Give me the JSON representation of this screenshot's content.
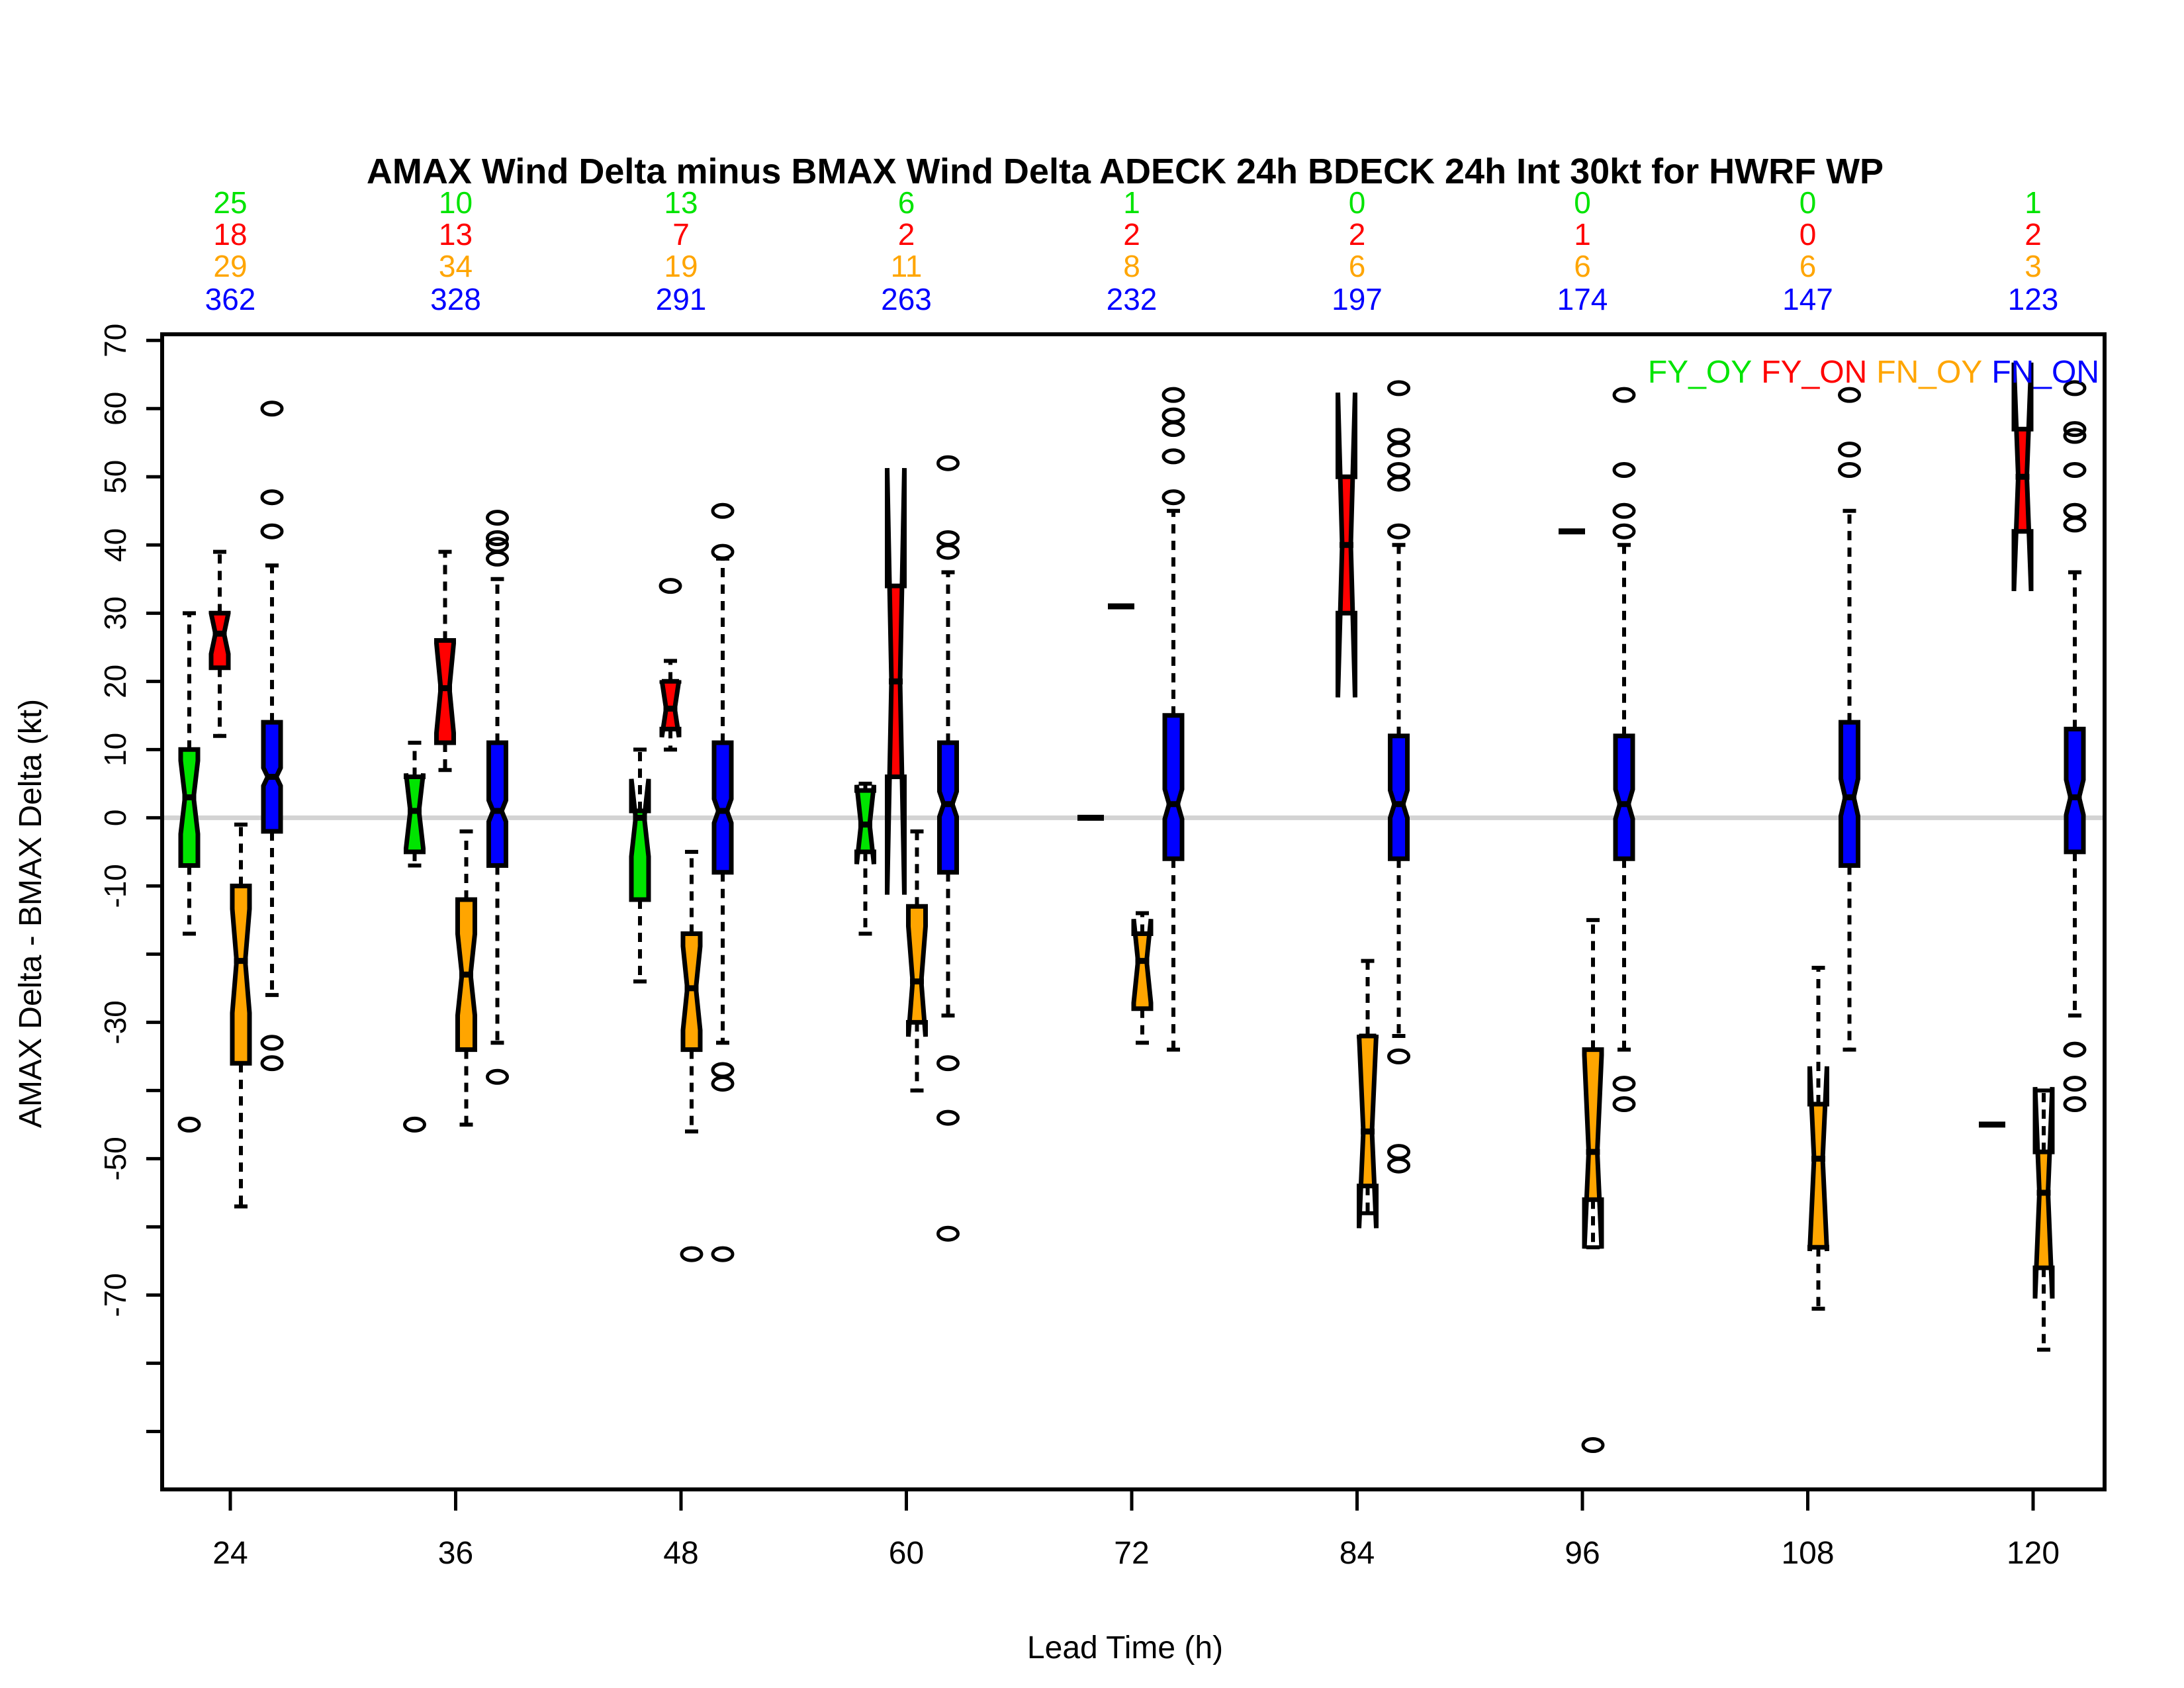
{
  "title": "AMAX Wind Delta minus BMAX Wind Delta ADECK 24h BDECK 24h Int 30kt for HWRF WP",
  "x_axis": {
    "label": "Lead Time (h)",
    "ticks": [
      24,
      36,
      48,
      60,
      72,
      84,
      96,
      108,
      120
    ]
  },
  "y_axis": {
    "label": "AMAX Delta - BMAX Delta (kt)",
    "tick_min": -90,
    "tick_max": 70,
    "tick_step": 10,
    "labeled_ticks": [
      70,
      60,
      50,
      40,
      30,
      20,
      10,
      0,
      -10,
      -30,
      -50,
      -70
    ],
    "range": [
      -98.5,
      70.9
    ]
  },
  "legend": {
    "items": [
      {
        "label": "FY_OY",
        "color": "#00e400"
      },
      {
        "label": "FY_ON",
        "color": "#ff0000"
      },
      {
        "label": "FN_OY",
        "color": "#ffa500"
      },
      {
        "label": "FN_ON",
        "color": "#0000ff"
      }
    ]
  },
  "counts_rows": [
    {
      "series": "FY_OY",
      "color": "#00e400",
      "values": [
        25,
        10,
        13,
        6,
        1,
        0,
        0,
        0,
        1
      ]
    },
    {
      "series": "FY_ON",
      "color": "#ff0000",
      "values": [
        18,
        13,
        7,
        2,
        2,
        2,
        1,
        0,
        2
      ]
    },
    {
      "series": "FN_OY",
      "color": "#ffa500",
      "values": [
        29,
        34,
        19,
        11,
        8,
        6,
        6,
        6,
        3
      ]
    },
    {
      "series": "FN_ON",
      "color": "#0000ff",
      "values": [
        362,
        328,
        291,
        263,
        232,
        197,
        174,
        147,
        123
      ]
    }
  ],
  "chart_data": {
    "type": "boxplot",
    "notched": true,
    "zero_line": 0,
    "zero_line_color": "#d3d3d3",
    "series_colors": {
      "FY_OY": "#00e400",
      "FY_ON": "#ff0000",
      "FN_OY": "#ffa500",
      "FN_ON": "#0000ff"
    },
    "groups": [
      {
        "lead": 24,
        "boxes": [
          {
            "series": "FY_OY",
            "n": 25,
            "q1": -7,
            "median": 3,
            "q3": 10,
            "whisker_low": -17,
            "whisker_high": 30,
            "outliers": [
              -45
            ]
          },
          {
            "series": "FY_ON",
            "n": 18,
            "q1": 22,
            "median": 27,
            "q3": 30,
            "whisker_low": 12,
            "whisker_high": 39,
            "outliers": []
          },
          {
            "series": "FN_OY",
            "n": 29,
            "q1": -36,
            "median": -21,
            "q3": -10,
            "whisker_low": -57,
            "whisker_high": -1,
            "outliers": []
          },
          {
            "series": "FN_ON",
            "n": 362,
            "q1": -2,
            "median": 6,
            "q3": 14,
            "whisker_low": -26,
            "whisker_high": 37,
            "outliers": [
              60,
              47,
              42,
              -33,
              -36
            ]
          }
        ]
      },
      {
        "lead": 36,
        "boxes": [
          {
            "series": "FY_OY",
            "n": 10,
            "q1": -5,
            "median": 1,
            "q3": 6,
            "whisker_low": -7,
            "whisker_high": 11,
            "outliers": [
              -45
            ]
          },
          {
            "series": "FY_ON",
            "n": 13,
            "q1": 11,
            "median": 19,
            "q3": 26,
            "whisker_low": 7,
            "whisker_high": 39,
            "outliers": []
          },
          {
            "series": "FN_OY",
            "n": 34,
            "q1": -34,
            "median": -23,
            "q3": -12,
            "whisker_low": -45,
            "whisker_high": -2,
            "outliers": []
          },
          {
            "series": "FN_ON",
            "n": 328,
            "q1": -7,
            "median": 1,
            "q3": 11,
            "whisker_low": -33,
            "whisker_high": 35,
            "outliers": [
              44,
              41,
              40,
              38,
              -38
            ]
          }
        ]
      },
      {
        "lead": 48,
        "boxes": [
          {
            "series": "FY_OY",
            "n": 13,
            "q1": -12,
            "median": 0,
            "q3": 1,
            "whisker_low": -24,
            "whisker_high": 10,
            "outliers": []
          },
          {
            "series": "FY_ON",
            "n": 7,
            "q1": 13,
            "median": 16,
            "q3": 20,
            "whisker_low": 10,
            "whisker_high": 23,
            "outliers": [
              34
            ]
          },
          {
            "series": "FN_OY",
            "n": 19,
            "q1": -34,
            "median": -25,
            "q3": -17,
            "whisker_low": -46,
            "whisker_high": -5,
            "outliers": [
              -64
            ]
          },
          {
            "series": "FN_ON",
            "n": 291,
            "q1": -8,
            "median": 1,
            "q3": 11,
            "whisker_low": -33,
            "whisker_high": 38,
            "outliers": [
              45,
              39,
              -37,
              -39,
              -64
            ]
          }
        ]
      },
      {
        "lead": 60,
        "boxes": [
          {
            "series": "FY_OY",
            "n": 6,
            "q1": -5,
            "median": -1,
            "q3": 4,
            "whisker_low": -17,
            "whisker_high": 5,
            "outliers": []
          },
          {
            "series": "FY_ON",
            "n": 2,
            "q1": 6,
            "median": 20,
            "q3": 34,
            "whisker_low": 6,
            "whisker_high": 34,
            "outliers": []
          },
          {
            "series": "FN_OY",
            "n": 11,
            "q1": -30,
            "median": -24,
            "q3": -13,
            "whisker_low": -40,
            "whisker_high": -2,
            "outliers": []
          },
          {
            "series": "FN_ON",
            "n": 263,
            "q1": -8,
            "median": 2,
            "q3": 11,
            "whisker_low": -29,
            "whisker_high": 36,
            "outliers": [
              52,
              41,
              39,
              -36,
              -44,
              -61
            ]
          }
        ]
      },
      {
        "lead": 72,
        "boxes": [
          {
            "series": "FY_OY",
            "n": 1,
            "q1": 0,
            "median": 0,
            "q3": 0,
            "whisker_low": 0,
            "whisker_high": 0,
            "outliers": []
          },
          {
            "series": "FY_ON",
            "n": 2,
            "q1": 31,
            "median": 31,
            "q3": 31,
            "whisker_low": 31,
            "whisker_high": 31,
            "outliers": []
          },
          {
            "series": "FN_OY",
            "n": 8,
            "q1": -28,
            "median": -21,
            "q3": -17,
            "whisker_low": -33,
            "whisker_high": -14,
            "outliers": []
          },
          {
            "series": "FN_ON",
            "n": 232,
            "q1": -6,
            "median": 2,
            "q3": 15,
            "whisker_low": -34,
            "whisker_high": 45,
            "outliers": [
              62,
              59,
              57,
              53,
              47
            ]
          }
        ]
      },
      {
        "lead": 84,
        "boxes": [
          {
            "series": "FY_ON",
            "n": 2,
            "q1": 30,
            "median": 40,
            "q3": 50,
            "whisker_low": 30,
            "whisker_high": 50,
            "outliers": []
          },
          {
            "series": "FN_OY",
            "n": 6,
            "q1": -54,
            "median": -46,
            "q3": -32,
            "whisker_low": -58,
            "whisker_high": -21,
            "outliers": []
          },
          {
            "series": "FN_ON",
            "n": 197,
            "q1": -6,
            "median": 2,
            "q3": 12,
            "whisker_low": -32,
            "whisker_high": 40,
            "outliers": [
              63,
              56,
              54,
              51,
              49,
              42,
              -35,
              -49,
              -51
            ]
          }
        ]
      },
      {
        "lead": 96,
        "boxes": [
          {
            "series": "FY_ON",
            "n": 1,
            "q1": 42,
            "median": 42,
            "q3": 42,
            "whisker_low": 42,
            "whisker_high": 42,
            "outliers": []
          },
          {
            "series": "FN_OY",
            "n": 6,
            "q1": -56,
            "median": -49,
            "q3": -34,
            "whisker_low": -63,
            "whisker_high": -15,
            "outliers": [
              -92
            ]
          },
          {
            "series": "FN_ON",
            "n": 174,
            "q1": -6,
            "median": 2,
            "q3": 12,
            "whisker_low": -34,
            "whisker_high": 40,
            "outliers": [
              62,
              51,
              45,
              42,
              -39,
              -42
            ]
          }
        ]
      },
      {
        "lead": 108,
        "boxes": [
          {
            "series": "FN_OY",
            "n": 6,
            "q1": -63,
            "median": -50,
            "q3": -42,
            "whisker_low": -72,
            "whisker_high": -22,
            "outliers": []
          },
          {
            "series": "FN_ON",
            "n": 147,
            "q1": -7,
            "median": 3,
            "q3": 14,
            "whisker_low": -34,
            "whisker_high": 45,
            "outliers": [
              62,
              54,
              51
            ]
          }
        ]
      },
      {
        "lead": 120,
        "boxes": [
          {
            "series": "FY_OY",
            "n": 1,
            "q1": -45,
            "median": -45,
            "q3": -45,
            "whisker_low": -45,
            "whisker_high": -45,
            "outliers": []
          },
          {
            "series": "FY_ON",
            "n": 2,
            "q1": 42,
            "median": 50,
            "q3": 57,
            "whisker_low": 42,
            "whisker_high": 57,
            "outliers": []
          },
          {
            "series": "FN_OY",
            "n": 3,
            "q1": -66,
            "median": -55,
            "q3": -49,
            "whisker_low": -78,
            "whisker_high": -40,
            "outliers": []
          },
          {
            "series": "FN_ON",
            "n": 123,
            "q1": -5,
            "median": 3,
            "q3": 13,
            "whisker_low": -29,
            "whisker_high": 36,
            "outliers": [
              63,
              57,
              56,
              51,
              45,
              43,
              -34,
              -39,
              -42
            ]
          }
        ]
      }
    ]
  }
}
